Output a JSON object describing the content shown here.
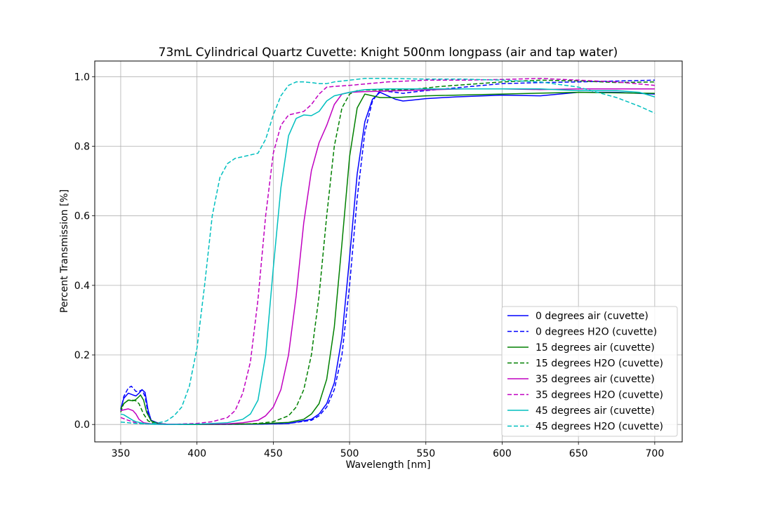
{
  "chart_data": {
    "type": "line",
    "title": "73mL Cylindrical Quartz Cuvette: Knight 500nm longpass (air and tap water)",
    "xlabel": "Wavelength [nm]",
    "ylabel": "Percent Transmission [%]",
    "xlim": [
      333,
      718
    ],
    "ylim": [
      -0.05,
      1.045
    ],
    "xticks": [
      350,
      400,
      450,
      500,
      550,
      600,
      650,
      700
    ],
    "yticks": [
      0.0,
      0.2,
      0.4,
      0.6,
      0.8,
      1.0
    ],
    "xtick_labels": [
      "350",
      "400",
      "450",
      "500",
      "550",
      "600",
      "650",
      "700"
    ],
    "ytick_labels": [
      "0.0",
      "0.2",
      "0.4",
      "0.6",
      "0.8",
      "1.0"
    ],
    "grid": true,
    "legend_position": "lower-right",
    "series": [
      {
        "name": "0 degrees air (cuvette)",
        "color": "#0000ff",
        "dash": "solid",
        "points": [
          [
            350,
            0.045
          ],
          [
            352,
            0.075
          ],
          [
            355,
            0.09
          ],
          [
            358,
            0.085
          ],
          [
            360,
            0.082
          ],
          [
            362,
            0.09
          ],
          [
            364,
            0.1
          ],
          [
            366,
            0.092
          ],
          [
            368,
            0.04
          ],
          [
            370,
            0.012
          ],
          [
            375,
            0.003
          ],
          [
            380,
            0.001
          ],
          [
            400,
            0.0
          ],
          [
            440,
            0.001
          ],
          [
            460,
            0.003
          ],
          [
            475,
            0.015
          ],
          [
            480,
            0.03
          ],
          [
            485,
            0.06
          ],
          [
            490,
            0.12
          ],
          [
            495,
            0.25
          ],
          [
            500,
            0.48
          ],
          [
            505,
            0.72
          ],
          [
            510,
            0.87
          ],
          [
            515,
            0.935
          ],
          [
            520,
            0.955
          ],
          [
            525,
            0.945
          ],
          [
            530,
            0.935
          ],
          [
            535,
            0.93
          ],
          [
            540,
            0.932
          ],
          [
            550,
            0.937
          ],
          [
            570,
            0.942
          ],
          [
            600,
            0.947
          ],
          [
            625,
            0.945
          ],
          [
            650,
            0.955
          ],
          [
            675,
            0.955
          ],
          [
            700,
            0.95
          ]
        ]
      },
      {
        "name": "0 degrees H2O (cuvette)",
        "color": "#0000ff",
        "dash": "dashed",
        "points": [
          [
            350,
            0.04
          ],
          [
            352,
            0.08
          ],
          [
            355,
            0.105
          ],
          [
            357,
            0.11
          ],
          [
            360,
            0.095
          ],
          [
            362,
            0.095
          ],
          [
            364,
            0.1
          ],
          [
            366,
            0.08
          ],
          [
            368,
            0.03
          ],
          [
            370,
            0.01
          ],
          [
            375,
            0.002
          ],
          [
            380,
            0.001
          ],
          [
            400,
            0.0
          ],
          [
            440,
            0.001
          ],
          [
            460,
            0.003
          ],
          [
            475,
            0.012
          ],
          [
            480,
            0.025
          ],
          [
            485,
            0.05
          ],
          [
            490,
            0.1
          ],
          [
            495,
            0.2
          ],
          [
            500,
            0.4
          ],
          [
            505,
            0.65
          ],
          [
            510,
            0.84
          ],
          [
            515,
            0.93
          ],
          [
            520,
            0.96
          ],
          [
            530,
            0.955
          ],
          [
            535,
            0.952
          ],
          [
            540,
            0.955
          ],
          [
            550,
            0.96
          ],
          [
            575,
            0.97
          ],
          [
            600,
            0.98
          ],
          [
            625,
            0.983
          ],
          [
            650,
            0.985
          ],
          [
            700,
            0.99
          ]
        ]
      },
      {
        "name": "15 degrees air (cuvette)",
        "color": "#008000",
        "dash": "solid",
        "points": [
          [
            350,
            0.045
          ],
          [
            352,
            0.06
          ],
          [
            355,
            0.07
          ],
          [
            358,
            0.068
          ],
          [
            360,
            0.072
          ],
          [
            362,
            0.08
          ],
          [
            363,
            0.085
          ],
          [
            365,
            0.07
          ],
          [
            367,
            0.035
          ],
          [
            370,
            0.01
          ],
          [
            375,
            0.002
          ],
          [
            380,
            0.001
          ],
          [
            400,
            0.0
          ],
          [
            440,
            0.002
          ],
          [
            460,
            0.006
          ],
          [
            470,
            0.015
          ],
          [
            475,
            0.03
          ],
          [
            480,
            0.06
          ],
          [
            485,
            0.13
          ],
          [
            490,
            0.28
          ],
          [
            495,
            0.52
          ],
          [
            500,
            0.77
          ],
          [
            505,
            0.91
          ],
          [
            510,
            0.95
          ],
          [
            515,
            0.945
          ],
          [
            520,
            0.94
          ],
          [
            525,
            0.94
          ],
          [
            530,
            0.94
          ],
          [
            550,
            0.945
          ],
          [
            600,
            0.95
          ],
          [
            650,
            0.955
          ],
          [
            700,
            0.952
          ]
        ]
      },
      {
        "name": "15 degrees H2O (cuvette)",
        "color": "#008000",
        "dash": "dashed",
        "points": [
          [
            350,
            0.035
          ],
          [
            352,
            0.06
          ],
          [
            355,
            0.07
          ],
          [
            358,
            0.07
          ],
          [
            360,
            0.068
          ],
          [
            362,
            0.06
          ],
          [
            365,
            0.03
          ],
          [
            368,
            0.01
          ],
          [
            372,
            0.003
          ],
          [
            380,
            0.001
          ],
          [
            400,
            0.0
          ],
          [
            430,
            0.001
          ],
          [
            440,
            0.003
          ],
          [
            450,
            0.008
          ],
          [
            460,
            0.025
          ],
          [
            465,
            0.05
          ],
          [
            470,
            0.1
          ],
          [
            475,
            0.2
          ],
          [
            480,
            0.37
          ],
          [
            485,
            0.6
          ],
          [
            490,
            0.8
          ],
          [
            495,
            0.91
          ],
          [
            500,
            0.95
          ],
          [
            505,
            0.96
          ],
          [
            510,
            0.962
          ],
          [
            520,
            0.962
          ],
          [
            540,
            0.963
          ],
          [
            560,
            0.972
          ],
          [
            600,
            0.985
          ],
          [
            625,
            0.99
          ],
          [
            650,
            0.988
          ],
          [
            675,
            0.983
          ],
          [
            700,
            0.985
          ]
        ]
      },
      {
        "name": "35 degrees air (cuvette)",
        "color": "#c000c0",
        "dash": "solid",
        "points": [
          [
            350,
            0.04
          ],
          [
            352,
            0.042
          ],
          [
            355,
            0.045
          ],
          [
            358,
            0.04
          ],
          [
            360,
            0.03
          ],
          [
            362,
            0.015
          ],
          [
            365,
            0.005
          ],
          [
            370,
            0.002
          ],
          [
            380,
            0.001
          ],
          [
            400,
            0.001
          ],
          [
            420,
            0.002
          ],
          [
            430,
            0.005
          ],
          [
            440,
            0.012
          ],
          [
            445,
            0.025
          ],
          [
            450,
            0.05
          ],
          [
            455,
            0.1
          ],
          [
            460,
            0.2
          ],
          [
            465,
            0.37
          ],
          [
            470,
            0.58
          ],
          [
            475,
            0.73
          ],
          [
            480,
            0.81
          ],
          [
            485,
            0.86
          ],
          [
            490,
            0.92
          ],
          [
            495,
            0.95
          ],
          [
            500,
            0.955
          ],
          [
            510,
            0.957
          ],
          [
            520,
            0.958
          ],
          [
            550,
            0.962
          ],
          [
            575,
            0.965
          ],
          [
            600,
            0.965
          ],
          [
            625,
            0.963
          ],
          [
            650,
            0.965
          ],
          [
            675,
            0.965
          ],
          [
            700,
            0.965
          ]
        ]
      },
      {
        "name": "35 degrees H2O (cuvette)",
        "color": "#c000c0",
        "dash": "dashed",
        "points": [
          [
            350,
            0.02
          ],
          [
            355,
            0.012
          ],
          [
            360,
            0.005
          ],
          [
            365,
            0.002
          ],
          [
            370,
            0.001
          ],
          [
            380,
            0.0
          ],
          [
            400,
            0.003
          ],
          [
            410,
            0.008
          ],
          [
            420,
            0.02
          ],
          [
            425,
            0.04
          ],
          [
            430,
            0.09
          ],
          [
            435,
            0.18
          ],
          [
            440,
            0.36
          ],
          [
            445,
            0.6
          ],
          [
            450,
            0.78
          ],
          [
            455,
            0.86
          ],
          [
            460,
            0.89
          ],
          [
            465,
            0.895
          ],
          [
            470,
            0.9
          ],
          [
            475,
            0.92
          ],
          [
            480,
            0.95
          ],
          [
            485,
            0.97
          ],
          [
            490,
            0.972
          ],
          [
            500,
            0.975
          ],
          [
            525,
            0.985
          ],
          [
            550,
            0.99
          ],
          [
            575,
            0.99
          ],
          [
            600,
            0.992
          ],
          [
            625,
            0.995
          ],
          [
            650,
            0.99
          ],
          [
            675,
            0.985
          ],
          [
            700,
            0.975
          ]
        ]
      },
      {
        "name": "45 degrees air (cuvette)",
        "color": "#00bfbf",
        "dash": "solid",
        "points": [
          [
            350,
            0.03
          ],
          [
            352,
            0.028
          ],
          [
            355,
            0.02
          ],
          [
            358,
            0.012
          ],
          [
            360,
            0.008
          ],
          [
            365,
            0.003
          ],
          [
            370,
            0.001
          ],
          [
            380,
            0.0
          ],
          [
            400,
            0.001
          ],
          [
            420,
            0.005
          ],
          [
            430,
            0.015
          ],
          [
            435,
            0.03
          ],
          [
            440,
            0.07
          ],
          [
            445,
            0.2
          ],
          [
            450,
            0.45
          ],
          [
            455,
            0.68
          ],
          [
            460,
            0.83
          ],
          [
            465,
            0.88
          ],
          [
            470,
            0.89
          ],
          [
            475,
            0.888
          ],
          [
            480,
            0.9
          ],
          [
            485,
            0.93
          ],
          [
            490,
            0.945
          ],
          [
            500,
            0.955
          ],
          [
            510,
            0.963
          ],
          [
            525,
            0.965
          ],
          [
            550,
            0.965
          ],
          [
            575,
            0.965
          ],
          [
            600,
            0.965
          ],
          [
            625,
            0.965
          ],
          [
            650,
            0.96
          ],
          [
            675,
            0.96
          ],
          [
            690,
            0.955
          ],
          [
            700,
            0.942
          ]
        ]
      },
      {
        "name": "45 degrees H2O (cuvette)",
        "color": "#00bfbf",
        "dash": "dashed",
        "points": [
          [
            350,
            0.007
          ],
          [
            355,
            0.005
          ],
          [
            360,
            0.003
          ],
          [
            365,
            0.002
          ],
          [
            370,
            0.002
          ],
          [
            375,
            0.005
          ],
          [
            380,
            0.01
          ],
          [
            385,
            0.025
          ],
          [
            390,
            0.05
          ],
          [
            395,
            0.11
          ],
          [
            400,
            0.22
          ],
          [
            405,
            0.4
          ],
          [
            410,
            0.6
          ],
          [
            415,
            0.71
          ],
          [
            420,
            0.75
          ],
          [
            425,
            0.765
          ],
          [
            430,
            0.77
          ],
          [
            435,
            0.775
          ],
          [
            440,
            0.78
          ],
          [
            445,
            0.82
          ],
          [
            450,
            0.89
          ],
          [
            455,
            0.945
          ],
          [
            460,
            0.975
          ],
          [
            465,
            0.985
          ],
          [
            470,
            0.985
          ],
          [
            475,
            0.983
          ],
          [
            480,
            0.98
          ],
          [
            485,
            0.98
          ],
          [
            490,
            0.985
          ],
          [
            500,
            0.99
          ],
          [
            510,
            0.995
          ],
          [
            525,
            0.995
          ],
          [
            550,
            0.993
          ],
          [
            575,
            0.993
          ],
          [
            600,
            0.99
          ],
          [
            625,
            0.985
          ],
          [
            650,
            0.97
          ],
          [
            675,
            0.94
          ],
          [
            690,
            0.915
          ],
          [
            700,
            0.895
          ]
        ]
      }
    ]
  }
}
